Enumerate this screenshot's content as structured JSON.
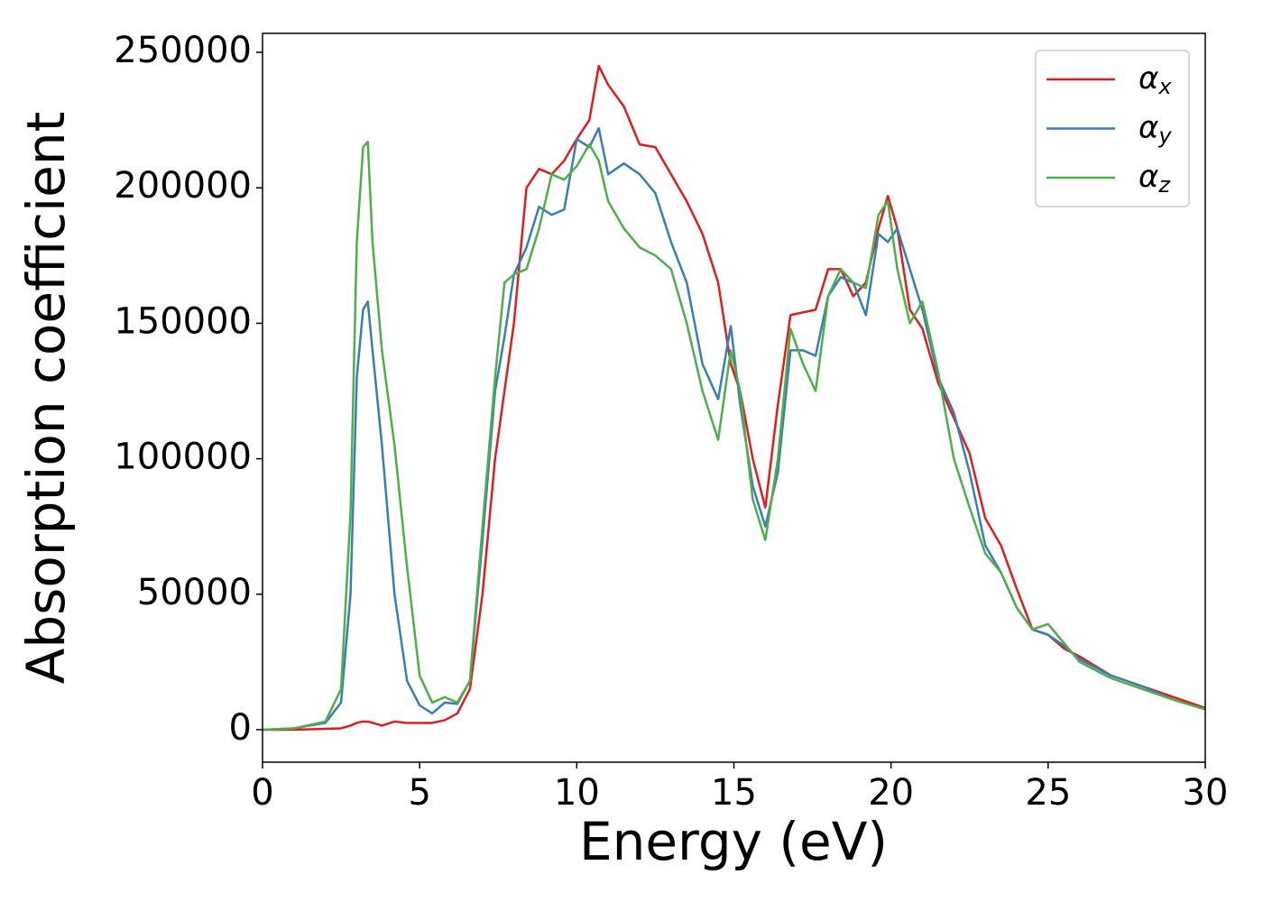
{
  "chart_data": {
    "type": "line",
    "xlabel": "Energy (eV)",
    "ylabel": "Absorption coefficient",
    "x": [
      0,
      1,
      2,
      2.5,
      2.8,
      3.0,
      3.2,
      3.35,
      3.5,
      3.8,
      4.2,
      4.6,
      5.0,
      5.4,
      5.8,
      6.2,
      6.6,
      7.0,
      7.4,
      7.7,
      8.0,
      8.4,
      8.8,
      9.2,
      9.6,
      10.0,
      10.4,
      10.7,
      11.0,
      11.5,
      12.0,
      12.5,
      13.0,
      13.5,
      14.0,
      14.5,
      14.9,
      15.2,
      15.6,
      16.0,
      16.4,
      16.8,
      17.2,
      17.6,
      18.0,
      18.4,
      18.8,
      19.2,
      19.6,
      19.9,
      20.2,
      20.6,
      21.0,
      21.5,
      22.0,
      22.5,
      23.0,
      23.5,
      24.0,
      24.5,
      25.0,
      25.5,
      26.0,
      27.0,
      28.0,
      29.0,
      30.0
    ],
    "series": [
      {
        "name": "αx",
        "color": "#e41a1c",
        "values": [
          0,
          0,
          300,
          500,
          1500,
          2500,
          3000,
          3000,
          2500,
          1500,
          3000,
          2500,
          2500,
          2500,
          3500,
          6000,
          15000,
          50000,
          100000,
          125000,
          150000,
          200000,
          207000,
          205000,
          210000,
          218000,
          225000,
          245000,
          238000,
          230000,
          216000,
          215000,
          205000,
          195000,
          183000,
          165000,
          135000,
          125000,
          100000,
          82000,
          120000,
          153000,
          154000,
          155000,
          170000,
          170000,
          160000,
          165000,
          185000,
          197000,
          185000,
          155000,
          148000,
          128000,
          115000,
          102000,
          78000,
          68000,
          52000,
          37000,
          35000,
          30000,
          27000,
          20000,
          16000,
          12000,
          8000
        ]
      },
      {
        "name": "αy",
        "color": "#377eb8",
        "values": [
          0,
          500,
          2500,
          10000,
          50000,
          130000,
          155000,
          158000,
          140000,
          105000,
          50000,
          18000,
          9000,
          6000,
          10000,
          9500,
          18000,
          70000,
          125000,
          145000,
          168000,
          178000,
          193000,
          190000,
          192000,
          218000,
          215000,
          222000,
          205000,
          209000,
          205000,
          198000,
          180000,
          165000,
          135000,
          122000,
          149000,
          120000,
          90000,
          75000,
          95000,
          140000,
          140000,
          138000,
          160000,
          167000,
          165000,
          153000,
          183000,
          180000,
          185000,
          170000,
          155000,
          130000,
          117000,
          95000,
          68000,
          58000,
          45000,
          37000,
          35000,
          31000,
          26000,
          20000,
          16000,
          11000,
          7500
        ]
      },
      {
        "name": "αz",
        "color": "#4daf4a",
        "values": [
          0,
          500,
          3000,
          15000,
          80000,
          180000,
          215000,
          217000,
          180000,
          140000,
          105000,
          60000,
          20000,
          10000,
          12000,
          10000,
          18000,
          75000,
          130000,
          165000,
          168000,
          170000,
          185000,
          205000,
          203000,
          208000,
          216000,
          210000,
          195000,
          185000,
          178000,
          175000,
          170000,
          150000,
          125000,
          107000,
          140000,
          125000,
          85000,
          70000,
          100000,
          148000,
          135000,
          125000,
          160000,
          170000,
          165000,
          163000,
          190000,
          195000,
          170000,
          150000,
          158000,
          132000,
          100000,
          82000,
          65000,
          58000,
          45000,
          37000,
          39000,
          32000,
          25000,
          19000,
          15000,
          11000,
          7500
        ]
      }
    ],
    "xlim": [
      0,
      30
    ],
    "xticks": [
      0,
      5,
      10,
      15,
      20,
      25,
      30
    ],
    "ylim": [
      -12000,
      257000
    ],
    "yticks": [
      0,
      50000,
      100000,
      150000,
      200000,
      250000
    ],
    "legend": "upper right"
  }
}
